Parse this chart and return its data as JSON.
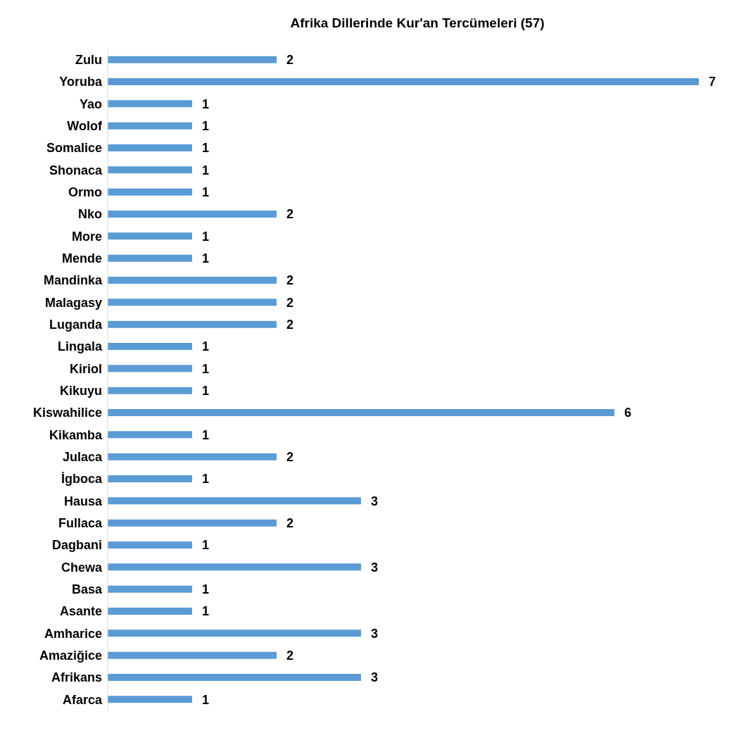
{
  "chart_data": {
    "type": "bar",
    "orientation": "horizontal",
    "title": "Afrika Dillerinde Kur'an Tercümeleri (57)",
    "categories": [
      "Zulu",
      "Yoruba",
      "Yao",
      "Wolof",
      "Somalice",
      "Shonaca",
      "Ormo",
      "Nko",
      "More",
      "Mende",
      "Mandinka",
      "Malagasy",
      "Luganda",
      "Lingala",
      "Kiriol",
      "Kikuyu",
      "Kiswahilice",
      "Kikamba",
      "Julaca",
      "İgboca",
      "Hausa",
      "Fullaca",
      "Dagbani",
      "Chewa",
      "Basa",
      "Asante",
      "Amharice",
      "Amaziğice",
      "Afrikans",
      "Afarca"
    ],
    "values": [
      2,
      7,
      1,
      1,
      1,
      1,
      1,
      2,
      1,
      1,
      2,
      2,
      2,
      1,
      1,
      1,
      6,
      1,
      2,
      1,
      3,
      2,
      1,
      3,
      1,
      1,
      3,
      2,
      3,
      1
    ],
    "color": "#5b9bd5",
    "data_labels": true,
    "grid": false,
    "legend": false
  }
}
